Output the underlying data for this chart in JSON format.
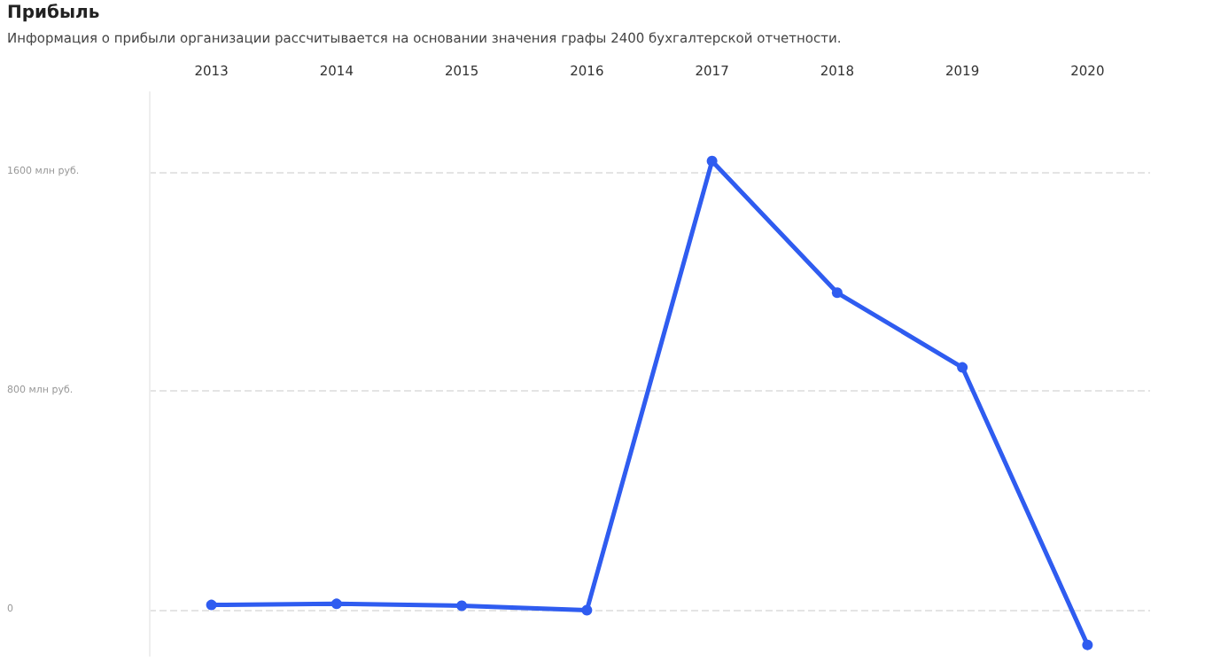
{
  "chart_data": {
    "type": "line",
    "title": "Прибыль",
    "subtitle": "Информация о прибыли организации рассчитывается на основании значения графы 2400 бухгалтерской отчетности.",
    "categories": [
      "2013",
      "2014",
      "2015",
      "2016",
      "2017",
      "2018",
      "2019",
      "2020"
    ],
    "series": [
      {
        "color": "#2f5cf0",
        "values": [
          16,
          20,
          13,
          -3,
          1638,
          1157,
          884,
          -130
        ]
      }
    ],
    "ylim": [
      -170,
      1890
    ],
    "yticks": [
      {
        "value": 0,
        "label": "0"
      },
      {
        "value": 800,
        "label": "800 млн руб."
      },
      {
        "value": 1600,
        "label": "1600 млн руб."
      }
    ],
    "grid": "y",
    "marker": "circle",
    "line_style": "solid"
  }
}
